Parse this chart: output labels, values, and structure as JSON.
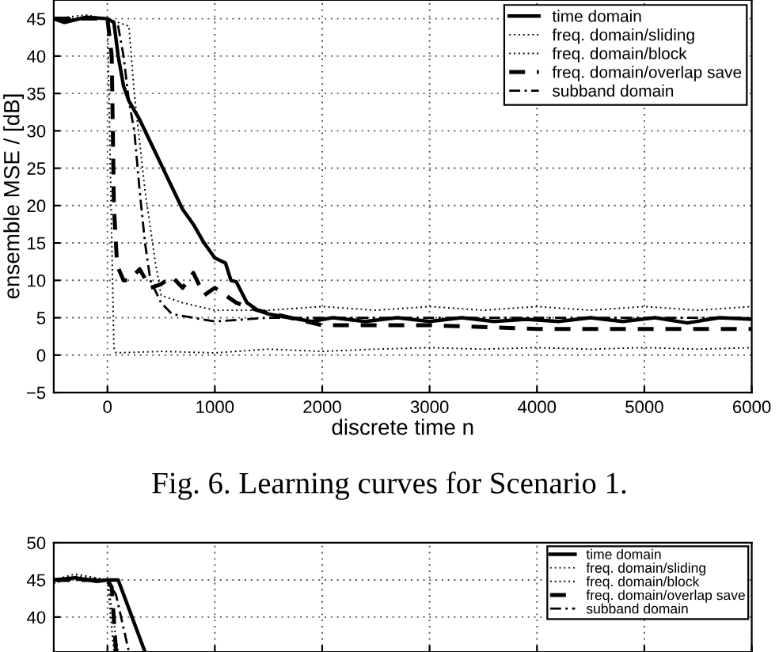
{
  "chart_data": [
    {
      "type": "line",
      "xlabel": "discrete time n",
      "ylabel": "ensemble MSE / [dB]",
      "annotations": [
        "Fig. 6. Learning curves for Scenario 1."
      ],
      "xlim": [
        -500,
        6000
      ],
      "xticks": [
        0,
        1000,
        2000,
        3000,
        4000,
        5000,
        6000
      ],
      "ylim": [
        -5,
        47.5
      ],
      "yticks": [
        {
          "value": -5,
          "label": "−5"
        },
        0,
        5,
        10,
        15,
        20,
        25,
        30,
        35,
        40,
        45
      ],
      "grid": true,
      "legend": "top right",
      "marker": "none",
      "series": [
        {
          "name": "time domain",
          "color": "#000000",
          "line_style": "solid",
          "x": [
            -500,
            -400,
            -200,
            0,
            60,
            100,
            150,
            200,
            300,
            400,
            500,
            600,
            700,
            800,
            900,
            1000,
            1100,
            1150,
            1200,
            1300,
            1400,
            1500,
            1700,
            1900,
            2100,
            2400,
            2700,
            3000,
            3300,
            3600,
            3900,
            4200,
            4500,
            4800,
            5100,
            5400,
            5700,
            6000
          ],
          "values": [
            45,
            44.5,
            45.2,
            45,
            44.5,
            40,
            36,
            34,
            31.5,
            28.5,
            25.5,
            22.5,
            19.5,
            17.5,
            15,
            13,
            12.3,
            10,
            9.8,
            7,
            6,
            5.5,
            5,
            4.5,
            5,
            4.5,
            5,
            4.5,
            5,
            4.5,
            4.8,
            4.5,
            5,
            4.5,
            5,
            4.3,
            5,
            4.8
          ]
        },
        {
          "name": "freq. domain/sliding",
          "color": "#000000",
          "line_style": "dotted",
          "x": [
            -500,
            -200,
            0,
            60,
            80,
            500,
            1000,
            1500,
            2000,
            2500,
            3000,
            3500,
            4000,
            4500,
            5000,
            5500,
            6000
          ],
          "values": [
            45,
            45.5,
            45,
            1,
            0.3,
            0.5,
            0.3,
            0.8,
            0.5,
            0.8,
            1,
            0.8,
            1,
            0.8,
            1,
            0.8,
            1
          ]
        },
        {
          "name": "freq. domain/block",
          "color": "#000000",
          "line_style": "dotted",
          "x": [
            -500,
            0,
            200,
            250,
            350,
            450,
            500,
            700,
            1000,
            1500,
            2000,
            2500,
            3000,
            3500,
            4000,
            4500,
            5000,
            5500,
            6000
          ],
          "values": [
            45,
            45,
            44,
            35,
            22,
            12,
            8,
            7,
            6,
            6,
            6.5,
            6,
            6.5,
            6,
            6.5,
            6,
            6.5,
            6,
            6.5
          ]
        },
        {
          "name": "freq. domain/overlap save",
          "color": "#000000",
          "line_style": "dashed",
          "x": [
            -500,
            0,
            40,
            60,
            90,
            150,
            200,
            300,
            400,
            500,
            600,
            700,
            800,
            900,
            1000,
            1200,
            1400,
            2000,
            3000,
            4000,
            5000,
            6000
          ],
          "values": [
            45,
            45,
            40,
            20,
            12,
            10,
            10,
            11.5,
            9,
            9.5,
            10.5,
            9,
            11,
            8,
            9,
            7,
            6,
            4,
            4,
            3.5,
            3.5,
            3.5
          ]
        },
        {
          "name": "subband domain",
          "color": "#000000",
          "line_style": "dashdot",
          "x": [
            -500,
            0,
            100,
            150,
            200,
            250,
            300,
            350,
            400,
            500,
            600,
            800,
            1000,
            1500,
            2000,
            3000,
            4000,
            5000,
            6000
          ],
          "values": [
            45,
            45,
            44,
            40,
            34,
            30,
            22,
            15,
            10,
            7,
            5.5,
            5,
            4.5,
            5,
            5,
            5,
            5,
            5,
            5
          ]
        }
      ]
    },
    {
      "type": "line",
      "xlim": [
        -500,
        6000
      ],
      "xticks": [
        0,
        1000,
        2000,
        3000,
        4000,
        5000,
        6000
      ],
      "ylim": [
        35.3,
        50
      ],
      "yticks": [
        40,
        45,
        50
      ],
      "tick_labels": "y",
      "grid": true,
      "legend": "top right",
      "marker": "none",
      "series": [
        {
          "name": "time domain",
          "color": "#000000",
          "line_style": "solid",
          "x": [
            -500,
            -300,
            -100,
            0,
            100,
            350
          ],
          "values": [
            45,
            45.3,
            44.8,
            45,
            45,
            35.3
          ]
        },
        {
          "name": "freq. domain/sliding",
          "color": "#000000",
          "line_style": "dotted",
          "x": [
            -500,
            -300,
            0,
            60
          ],
          "values": [
            44.5,
            45.5,
            45,
            35.3
          ]
        },
        {
          "name": "freq. domain/block",
          "color": "#000000",
          "line_style": "dotted",
          "x": [
            -500,
            -300,
            0,
            100
          ],
          "values": [
            45,
            45.8,
            45,
            35.3
          ]
        },
        {
          "name": "freq. domain/overlap save",
          "color": "#000000",
          "line_style": "dashed",
          "x": [
            -500,
            0,
            40,
            80
          ],
          "values": [
            45,
            45,
            44,
            35.3
          ]
        },
        {
          "name": "subband domain",
          "color": "#000000",
          "line_style": "dashdot",
          "x": [
            -500,
            0,
            80,
            200
          ],
          "values": [
            45,
            45,
            43,
            35.3
          ]
        }
      ]
    }
  ]
}
